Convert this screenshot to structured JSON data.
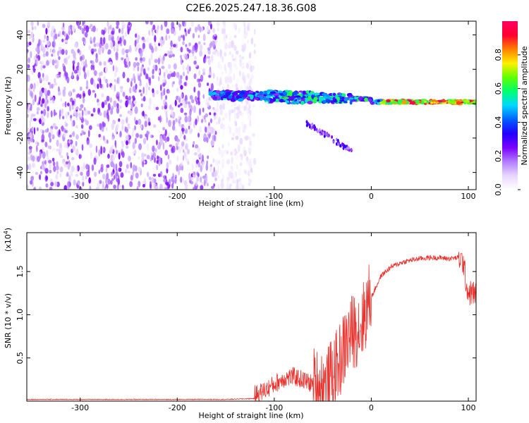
{
  "title": "C2E6.2025.247.18.36.G08",
  "chart_data": [
    {
      "type": "heatmap",
      "xlabel": "Height of straight line (km)",
      "ylabel": "Frequency (Hz)",
      "xlim": [
        -355,
        108
      ],
      "ylim": [
        -50,
        48
      ],
      "xticks": [
        -300,
        -200,
        -100,
        0,
        100
      ],
      "yticks": [
        -40,
        -20,
        0,
        20,
        40
      ],
      "colorbar": {
        "label": "Normalized spectral amplitude",
        "range": [
          0.0,
          1.0
        ],
        "ticks": [
          0.0,
          0.2,
          0.4,
          0.6,
          0.8
        ],
        "colormap": [
          "#ffffff",
          "#e8d6ff",
          "#b07cff",
          "#7a00ff",
          "#2000ff",
          "#0060ff",
          "#00d8ff",
          "#00ff70",
          "#60ff00",
          "#fff000",
          "#ff8000",
          "#ff0030",
          "#ff0060"
        ]
      },
      "features": {
        "noise_region_km": [
          -355,
          -130
        ],
        "carrier_frequency_hz": 1,
        "signal_region_km": [
          -165,
          108
        ]
      }
    },
    {
      "type": "line",
      "xlabel": "Height of straight line (km)",
      "ylabel": "SNR (10 * v/v)",
      "yscale_label": "(x10",
      "yscale_exp": "4",
      "xlim": [
        -355,
        108
      ],
      "ylim": [
        0,
        1.95
      ],
      "xticks": [
        -300,
        -200,
        -100,
        0,
        100
      ],
      "yticks": [
        0.5,
        1.0,
        1.5
      ],
      "color": "#e8312c",
      "x": [
        -355,
        -300,
        -250,
        -200,
        -150,
        -120,
        -110,
        -100,
        -90,
        -80,
        -70,
        -60,
        -50,
        -45,
        -40,
        -35,
        -30,
        -25,
        -20,
        -15,
        -10,
        0,
        10,
        20,
        30,
        40,
        50,
        60,
        70,
        80,
        90,
        95,
        98,
        100,
        105,
        108
      ],
      "y": [
        0.02,
        0.02,
        0.02,
        0.02,
        0.02,
        0.03,
        0.08,
        0.15,
        0.22,
        0.24,
        0.2,
        0.15,
        0.12,
        0.15,
        0.25,
        0.35,
        0.5,
        0.65,
        0.75,
        0.8,
        0.85,
        1.2,
        1.45,
        1.55,
        1.6,
        1.63,
        1.65,
        1.66,
        1.66,
        1.65,
        1.66,
        1.6,
        1.35,
        1.25,
        1.25,
        1.25
      ]
    }
  ]
}
